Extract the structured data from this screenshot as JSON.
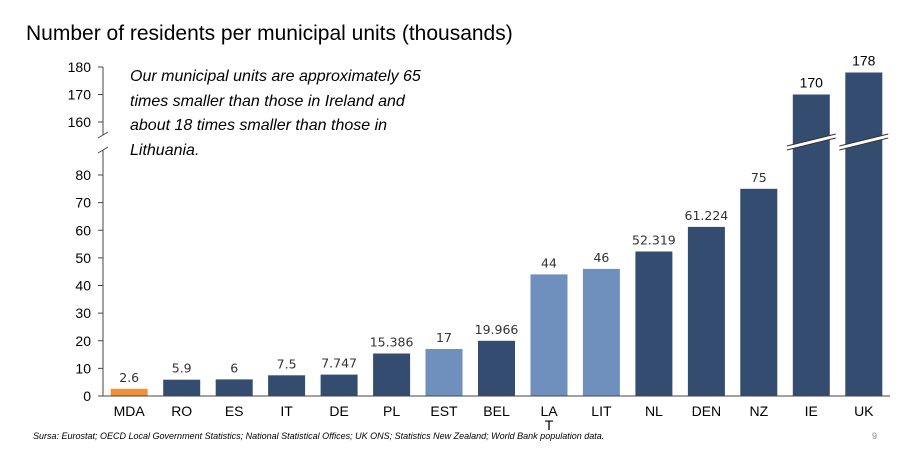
{
  "title": "Number of residents per municipal units (thousands)",
  "annotation": "Our municipal units are approximately 65 times smaller than those in Ireland and about 18 times smaller than those in Lithuania.",
  "source": "Sursa: Eurostat; OECD Local Government Statistics; National Statistical Offices; UK ONS; Statistics New Zealand; World Bank population data.",
  "page_number": "9",
  "colors": {
    "dark": "#344c6f",
    "light": "#6f90bc",
    "highlight": "#f0913a"
  },
  "chart_data": {
    "type": "bar",
    "xlabel": "",
    "ylabel": "",
    "ylim": [
      0,
      180
    ],
    "axis_break": [
      85,
      155
    ],
    "yticks": [
      0,
      10,
      20,
      30,
      40,
      50,
      60,
      70,
      80,
      160,
      170,
      180
    ],
    "grid": false,
    "categories": [
      "MDA",
      "RO",
      "ES",
      "IT",
      "DE",
      "PL",
      "EST",
      "BEL",
      "LAT",
      "LIT",
      "NL",
      "DEN",
      "NZ",
      "IE",
      "UK"
    ],
    "values": [
      2.6,
      5.9,
      6,
      7.5,
      7.747,
      15.386,
      17,
      19.966,
      44,
      46,
      52.319,
      61.224,
      75,
      170,
      178
    ],
    "value_labels": [
      "2.6",
      "5.9",
      "6",
      "7.5",
      "7.747",
      "15.386",
      "17",
      "19.966",
      "44",
      "46",
      "52.319",
      "61.224",
      "75",
      "170",
      "178"
    ],
    "bar_colors": [
      "#f0913a",
      "#344c6f",
      "#344c6f",
      "#344c6f",
      "#344c6f",
      "#344c6f",
      "#6f90bc",
      "#344c6f",
      "#6f90bc",
      "#6f90bc",
      "#344c6f",
      "#344c6f",
      "#344c6f",
      "#344c6f",
      "#344c6f"
    ]
  }
}
